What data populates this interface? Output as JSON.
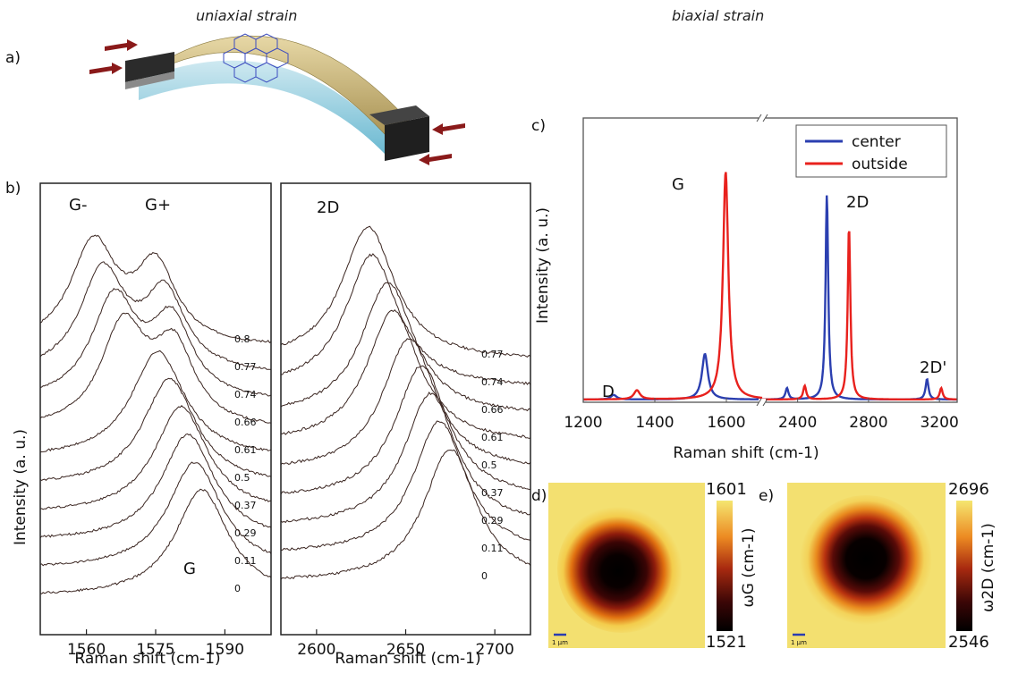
{
  "headings": {
    "uniaxial": "uniaxial strain",
    "biaxial": "biaxial strain"
  },
  "panel_labels": {
    "a": "a)",
    "b": "b)",
    "c": "c)",
    "d": "d)",
    "e": "e)"
  },
  "colors": {
    "center": "#2b3fb0",
    "outside": "#e8211d",
    "trace": "#3a2520"
  },
  "chart_data": [
    {
      "id": "b-left",
      "type": "line",
      "xlabel": "Raman shift (cm-1)",
      "ylabel": "Intensity (a. u.)",
      "xlim": [
        1550,
        1600
      ],
      "xticks": [
        1560,
        1575,
        1590
      ],
      "peak_labels": [
        "G-",
        "G+",
        "G"
      ],
      "series": [
        {
          "name": "0.8",
          "peaks": [
            1561.5,
            1575
          ]
        },
        {
          "name": "0.77",
          "peaks": [
            1563.5,
            1577
          ]
        },
        {
          "name": "0.74",
          "peaks": [
            1566,
            1578.5
          ]
        },
        {
          "name": "0.66",
          "peaks": [
            1568,
            1579
          ]
        },
        {
          "name": "0.61",
          "peaks": [
            1575.5
          ]
        },
        {
          "name": "0.5",
          "peaks": [
            1578
          ]
        },
        {
          "name": "0.37",
          "peaks": [
            1580.5
          ]
        },
        {
          "name": "0.29",
          "peaks": [
            1582
          ]
        },
        {
          "name": "0.11",
          "peaks": [
            1583.5
          ]
        },
        {
          "name": "0",
          "peaks": [
            1585
          ]
        }
      ]
    },
    {
      "id": "b-right",
      "type": "line",
      "xlabel": "Raman shift (cm-1)",
      "xlim": [
        2580,
        2720
      ],
      "xticks": [
        2600,
        2650,
        2700
      ],
      "peak_labels": [
        "2D"
      ],
      "series": [
        {
          "name": "0.77",
          "peaks": [
            2629
          ]
        },
        {
          "name": "0.74",
          "peaks": [
            2631
          ]
        },
        {
          "name": "0.66",
          "peaks": [
            2640
          ]
        },
        {
          "name": "0.61",
          "peaks": [
            2643
          ]
        },
        {
          "name": "0.5",
          "peaks": [
            2652
          ]
        },
        {
          "name": "0.37",
          "peaks": [
            2659
          ]
        },
        {
          "name": "0.29",
          "peaks": [
            2664
          ]
        },
        {
          "name": "0.11",
          "peaks": [
            2669
          ]
        },
        {
          "name": "0",
          "peaks": [
            2675
          ]
        }
      ]
    },
    {
      "id": "c",
      "type": "line",
      "xlabel": "Raman shift (cm-1)",
      "ylabel": "Intensity (a. u.)",
      "xticks": [
        1200,
        1400,
        1600,
        2400,
        2800,
        3200
      ],
      "axis_break": [
        1700,
        2200
      ],
      "peak_labels": [
        "D",
        "G",
        "2D",
        "2D'"
      ],
      "series": [
        {
          "name": "center",
          "peaks": [
            {
              "x": 1285,
              "h": 0.02
            },
            {
              "x": 1540,
              "h": 0.2
            },
            {
              "x": 2340,
              "h": 0.05
            },
            {
              "x": 2565,
              "h": 0.9
            },
            {
              "x": 3130,
              "h": 0.09
            }
          ]
        },
        {
          "name": "outside",
          "peaks": [
            {
              "x": 1350,
              "h": 0.04
            },
            {
              "x": 1598,
              "h": 1.0
            },
            {
              "x": 2440,
              "h": 0.06
            },
            {
              "x": 2690,
              "h": 0.76
            },
            {
              "x": 3210,
              "h": 0.05
            }
          ]
        }
      ]
    },
    {
      "id": "d",
      "type": "heatmap",
      "colorbar_label": "ωG (cm-1)",
      "colorbar_range": [
        1521,
        1601
      ],
      "scalebar": "1 μm"
    },
    {
      "id": "e",
      "type": "heatmap",
      "colorbar_label": "ω2D (cm-1)",
      "colorbar_range": [
        2546,
        2696
      ],
      "scalebar": "1 μm"
    }
  ]
}
